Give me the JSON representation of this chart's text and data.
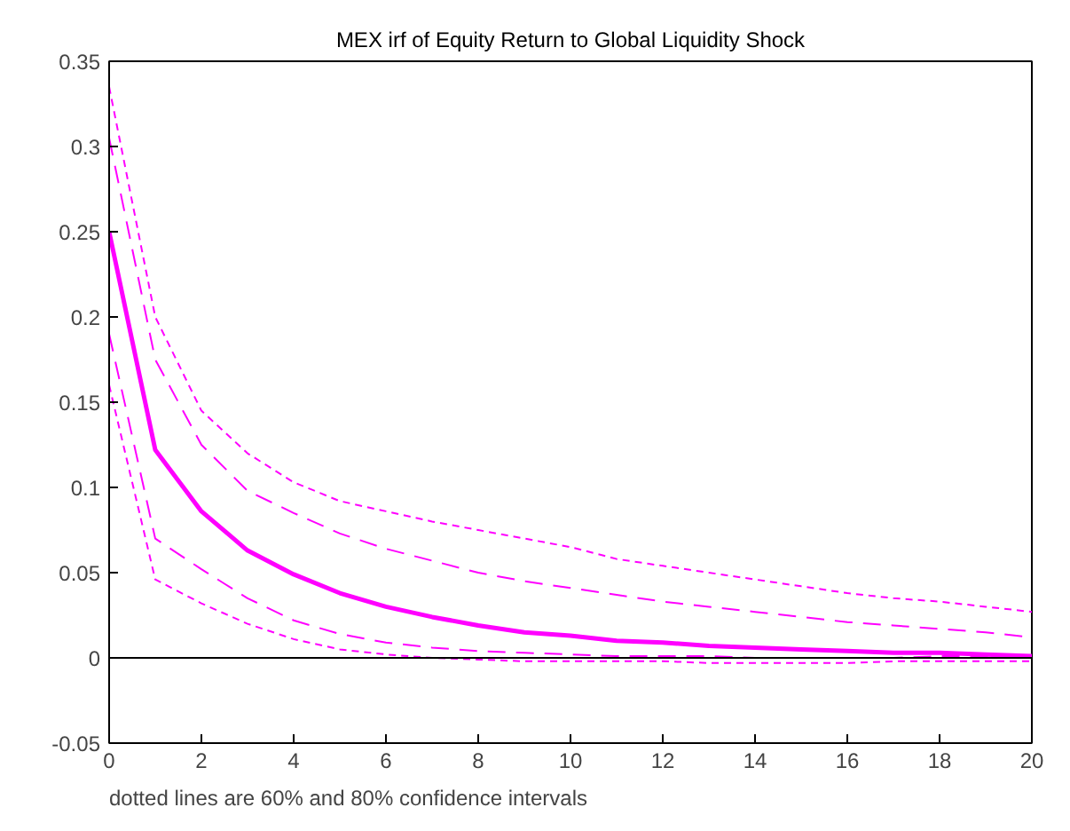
{
  "chart_data": {
    "type": "line",
    "title": "MEX irf of Equity Return to Global Liquidity Shock",
    "x": [
      0,
      1,
      2,
      3,
      4,
      5,
      6,
      7,
      8,
      9,
      10,
      11,
      12,
      13,
      14,
      15,
      16,
      17,
      18,
      19,
      20
    ],
    "series": [
      {
        "color": "#ff00ff",
        "line_style": "dotted",
        "values": [
          0.335,
          0.2,
          0.145,
          0.12,
          0.103,
          0.092,
          0.086,
          0.08,
          0.075,
          0.07,
          0.065,
          0.058,
          0.054,
          0.05,
          0.046,
          0.042,
          0.038,
          0.035,
          0.033,
          0.03,
          0.027
        ]
      },
      {
        "color": "#ff00ff",
        "line_style": "dashed",
        "values": [
          0.305,
          0.175,
          0.125,
          0.098,
          0.085,
          0.073,
          0.064,
          0.057,
          0.05,
          0.045,
          0.041,
          0.037,
          0.033,
          0.03,
          0.027,
          0.024,
          0.021,
          0.019,
          0.017,
          0.015,
          0.012
        ]
      },
      {
        "color": "#ff00ff",
        "line_style": "solid",
        "values": [
          0.25,
          0.122,
          0.086,
          0.063,
          0.049,
          0.038,
          0.03,
          0.024,
          0.019,
          0.015,
          0.013,
          0.01,
          0.009,
          0.007,
          0.006,
          0.005,
          0.004,
          0.003,
          0.003,
          0.002,
          0.001
        ]
      },
      {
        "color": "#ff00ff",
        "line_style": "dashed",
        "values": [
          0.19,
          0.07,
          0.052,
          0.035,
          0.022,
          0.014,
          0.009,
          0.006,
          0.004,
          0.003,
          0.002,
          0.001,
          0.001,
          0.001,
          0.0,
          0.0,
          0.0,
          0.0,
          0.001,
          0.001,
          0.001
        ]
      },
      {
        "color": "#ff00ff",
        "line_style": "dotted",
        "values": [
          0.16,
          0.046,
          0.032,
          0.02,
          0.011,
          0.005,
          0.002,
          0.0,
          -0.001,
          -0.002,
          -0.002,
          -0.002,
          -0.002,
          -0.003,
          -0.003,
          -0.003,
          -0.003,
          -0.002,
          -0.002,
          -0.002,
          -0.002
        ]
      }
    ],
    "xlim": [
      0,
      20
    ],
    "xticks": [
      0,
      2,
      4,
      6,
      8,
      10,
      12,
      14,
      16,
      18,
      20
    ],
    "ylim": [
      -0.05,
      0.35
    ],
    "yticks": [
      -0.05,
      0,
      0.05,
      0.1,
      0.15,
      0.2,
      0.25,
      0.3,
      0.35
    ],
    "ref_lines": [
      {
        "axis": "y",
        "value": 0,
        "color": "#000000"
      }
    ],
    "annotations": [
      "dotted lines are 60% and 80% confidence intervals"
    ],
    "grid": false
  }
}
